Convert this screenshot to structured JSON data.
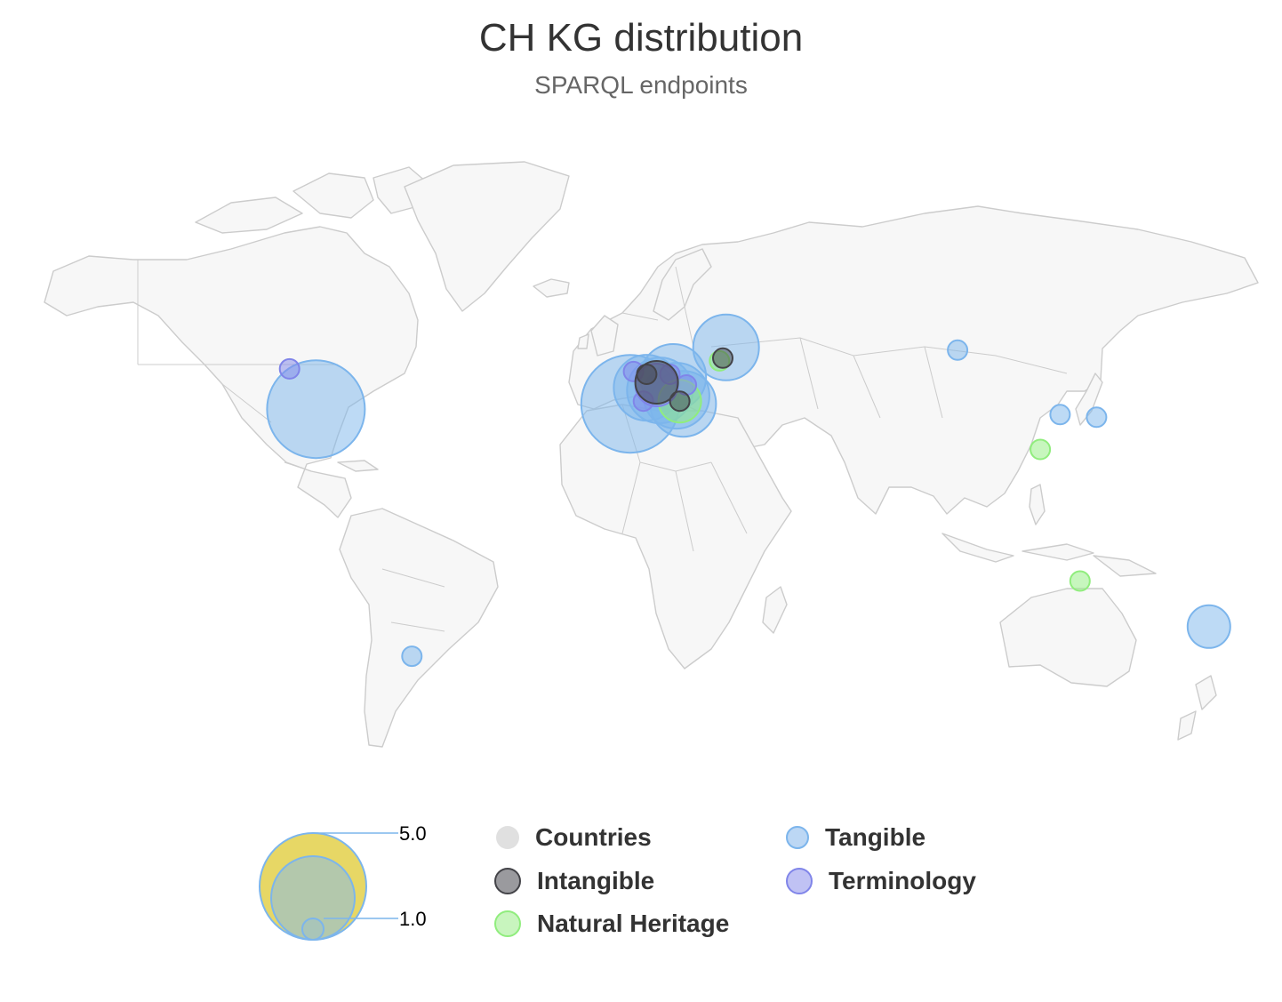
{
  "chart": {
    "title": "CH KG distribution",
    "subtitle": "SPARQL endpoints"
  },
  "colors": {
    "countries": "#e0e0e0",
    "intangible": "#434348",
    "tangible": "#7cb5ec",
    "natural_heritage": "#90ed7d",
    "terminology": "#8085e9",
    "bubble_legend_fill": "#e4d354"
  },
  "legend": {
    "items": [
      {
        "key": "countries",
        "label": "Countries"
      },
      {
        "key": "tangible",
        "label": "Tangible"
      },
      {
        "key": "intangible",
        "label": "Intangible"
      },
      {
        "key": "terminology",
        "label": "Terminology"
      },
      {
        "key": "natural_heritage",
        "label": "Natural Heritage"
      }
    ],
    "bubble_size": {
      "max_label": "5.0",
      "min_label": "1.0",
      "max": 5,
      "min": 1
    }
  },
  "chart_data": {
    "type": "bubble-map",
    "title": "CH KG distribution",
    "subtitle": "SPARQL endpoints",
    "series": [
      {
        "name": "Tangible",
        "color": "#7cb5ec",
        "points": [
          {
            "lon": -98,
            "lat": 39,
            "z": 4
          },
          {
            "lon": -3,
            "lat": 41,
            "z": 4
          },
          {
            "lon": 10,
            "lat": 51,
            "z": 3
          },
          {
            "lon": 2,
            "lat": 47,
            "z": 3
          },
          {
            "lon": 6,
            "lat": 46,
            "z": 3
          },
          {
            "lon": 13,
            "lat": 41,
            "z": 3
          },
          {
            "lon": 11,
            "lat": 44,
            "z": 3
          },
          {
            "lon": 26,
            "lat": 62,
            "z": 3
          },
          {
            "lon": 172,
            "lat": -42,
            "z": 2
          },
          {
            "lon": 96,
            "lat": 61,
            "z": 1
          },
          {
            "lon": 127,
            "lat": 37,
            "z": 1
          },
          {
            "lon": 138,
            "lat": 36,
            "z": 1
          },
          {
            "lon": -69,
            "lat": -53,
            "z": 1
          }
        ]
      },
      {
        "name": "Intangible",
        "color": "#434348",
        "points": [
          {
            "lon": 25,
            "lat": 58,
            "z": 1
          },
          {
            "lon": 5,
            "lat": 49,
            "z": 2
          },
          {
            "lon": 2,
            "lat": 52,
            "z": 1
          },
          {
            "lon": 12,
            "lat": 42,
            "z": 1
          }
        ]
      },
      {
        "name": "Terminology",
        "color": "#8085e9",
        "points": [
          {
            "lon": -106,
            "lat": 54,
            "z": 1
          },
          {
            "lon": -2,
            "lat": 53,
            "z": 1
          },
          {
            "lon": 9,
            "lat": 52,
            "z": 1
          },
          {
            "lon": 14,
            "lat": 48,
            "z": 1
          },
          {
            "lon": 1,
            "lat": 42,
            "z": 1
          },
          {
            "lon": 5,
            "lat": 48,
            "z": 2
          }
        ]
      },
      {
        "name": "Natural Heritage",
        "color": "#90ed7d",
        "points": [
          {
            "lon": 24,
            "lat": 57,
            "z": 1
          },
          {
            "lon": 12,
            "lat": 42,
            "z": 2
          },
          {
            "lon": 121,
            "lat": 24,
            "z": 1
          },
          {
            "lon": 133,
            "lat": -25,
            "z": 1
          }
        ]
      }
    ]
  }
}
